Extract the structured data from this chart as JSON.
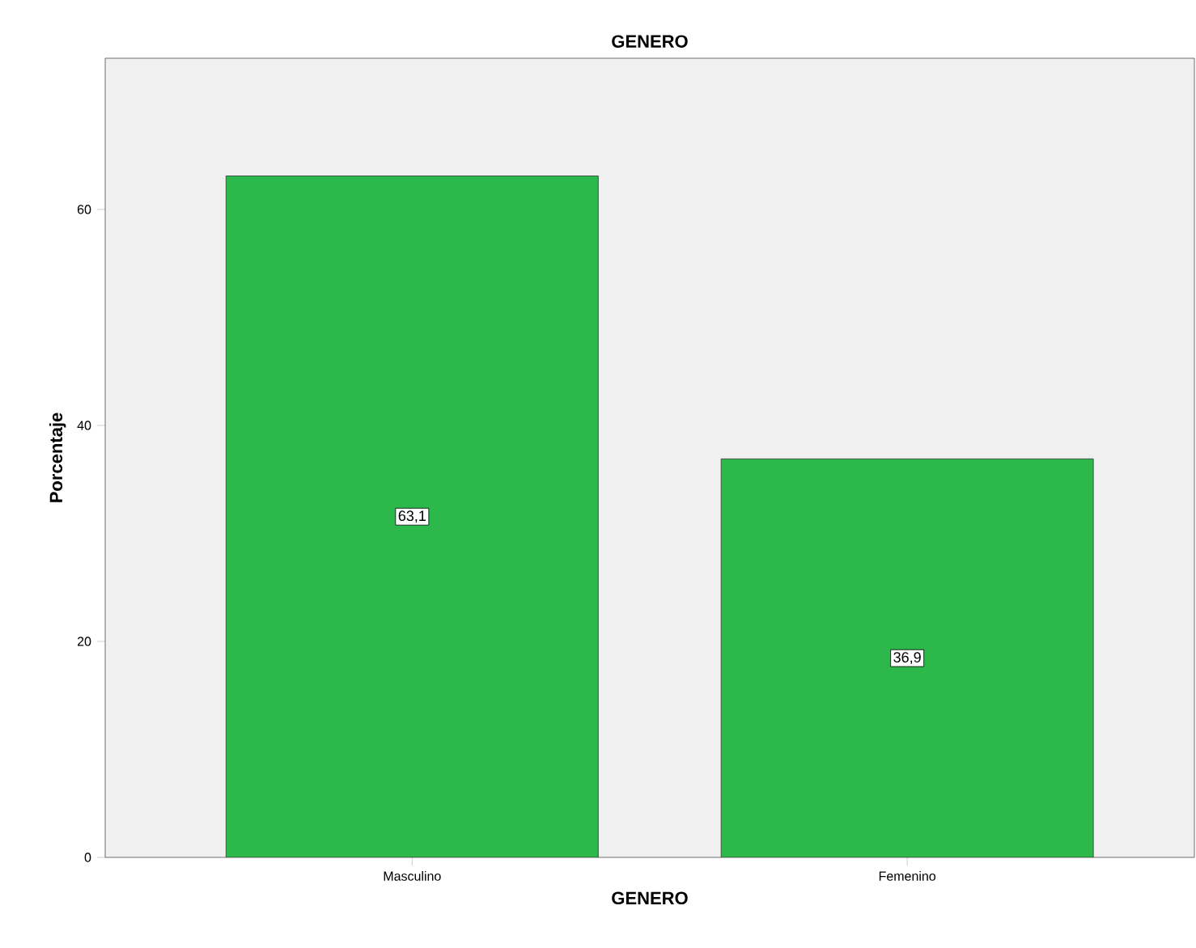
{
  "chart_data": {
    "type": "bar",
    "title": "GENERO",
    "xlabel": "GENERO",
    "ylabel": "Porcentaje",
    "categories": [
      "Masculino",
      "Femenino"
    ],
    "values": [
      63.1,
      36.9
    ],
    "value_labels": [
      "63,1",
      "36,9"
    ],
    "color": "#2db84c",
    "ylim": [
      0,
      74
    ],
    "yticks": [
      0,
      20,
      40,
      60
    ]
  }
}
